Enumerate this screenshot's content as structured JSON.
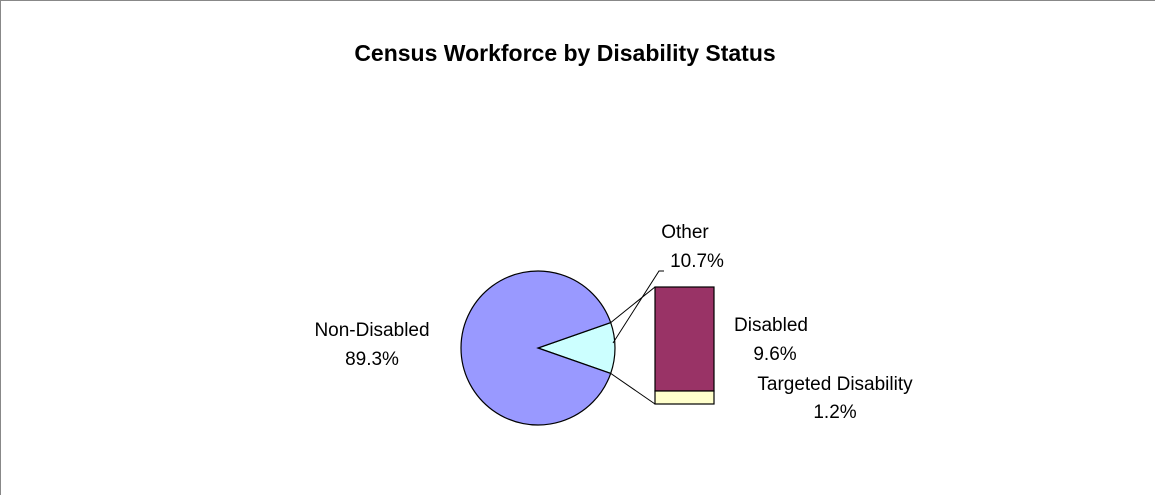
{
  "chart_data": {
    "type": "pie",
    "title": "Census Workforce by Disability Status",
    "categories": [
      "Non-Disabled",
      "Other"
    ],
    "values": [
      89.3,
      10.7
    ],
    "value_labels": [
      "89.3%",
      "10.7%"
    ],
    "colors": [
      "#9999ff",
      "#ccffff"
    ],
    "breakdown": {
      "categories": [
        "Disabled",
        "Targeted Disability"
      ],
      "values": [
        9.6,
        1.2
      ],
      "value_labels": [
        "9.6%",
        "1.2%"
      ],
      "colors": [
        "#993366",
        "#ffffcc"
      ]
    }
  }
}
